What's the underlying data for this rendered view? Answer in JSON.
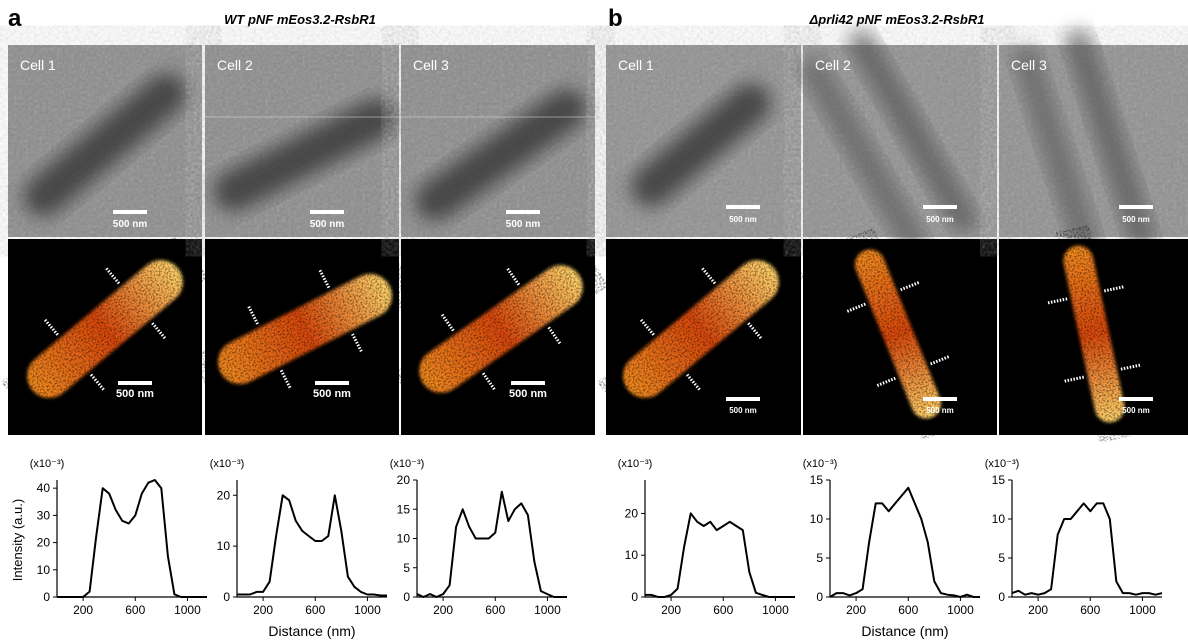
{
  "panels": [
    {
      "label": "a",
      "title": "WT pNF mEos3.2-RsbR1",
      "cells": [
        {
          "name": "Cell 1",
          "scalebar_em": "500 nm",
          "scalebar_sr": "500 nm"
        },
        {
          "name": "Cell 2",
          "scalebar_em": "500 nm",
          "scalebar_sr": "500 nm"
        },
        {
          "name": "Cell 3",
          "scalebar_em": "500 nm",
          "scalebar_sr": "500 nm"
        }
      ]
    },
    {
      "label": "b",
      "title": "Δprli42 pNF mEos3.2-RsbR1",
      "cells": [
        {
          "name": "Cell 1",
          "scalebar_em": "500 nm",
          "scalebar_sr": "500 nm"
        },
        {
          "name": "Cell 2",
          "scalebar_em": "500 nm",
          "scalebar_sr": "500 nm"
        },
        {
          "name": "Cell 3",
          "scalebar_em": "500 nm",
          "scalebar_sr": "500 nm"
        }
      ]
    }
  ],
  "chart_data": [
    {
      "type": "line",
      "y_unit": "(x10⁻³)",
      "y_label": "Intensity (a.u.)",
      "color": "#000000",
      "x": [
        0,
        50,
        100,
        150,
        200,
        250,
        300,
        350,
        400,
        450,
        500,
        550,
        600,
        650,
        700,
        750,
        800,
        850,
        900,
        950,
        1000,
        1050,
        1100,
        1150
      ],
      "values": [
        0,
        0,
        0,
        0,
        0,
        2,
        22,
        40,
        38,
        32,
        28,
        27,
        30,
        38,
        42,
        43,
        40,
        15,
        1,
        0,
        0,
        0,
        0,
        0
      ],
      "xlim": [
        0,
        1150
      ],
      "xticks": [
        200,
        600,
        1000
      ],
      "ylim": [
        0,
        43
      ],
      "yticks": [
        0,
        10,
        20,
        30,
        40
      ]
    },
    {
      "type": "line",
      "y_unit": "(x10⁻³)",
      "x_label": "Distance (nm)",
      "color": "#000000",
      "x": [
        0,
        50,
        100,
        150,
        200,
        250,
        300,
        350,
        400,
        450,
        500,
        550,
        600,
        650,
        700,
        750,
        800,
        850,
        900,
        950,
        1000,
        1050,
        1100,
        1150
      ],
      "values": [
        0.5,
        0.5,
        0.5,
        1,
        1,
        3,
        12,
        20,
        19,
        15,
        13,
        12,
        11,
        11,
        12,
        20,
        13,
        4,
        2,
        1,
        0.5,
        0.5,
        0.3,
        0.3
      ],
      "xlim": [
        0,
        1150
      ],
      "xticks": [
        200,
        600,
        1000
      ],
      "ylim": [
        0,
        23
      ],
      "yticks": [
        0,
        10,
        20
      ]
    },
    {
      "type": "line",
      "y_unit": "(x10⁻³)",
      "color": "#000000",
      "x": [
        0,
        50,
        100,
        150,
        200,
        250,
        300,
        350,
        400,
        450,
        500,
        550,
        600,
        650,
        700,
        750,
        800,
        850,
        900,
        950,
        1000,
        1050,
        1100,
        1150
      ],
      "values": [
        0.5,
        0,
        0.5,
        0,
        0.5,
        2,
        12,
        15,
        12,
        10,
        10,
        10,
        11,
        18,
        13,
        15,
        16,
        14,
        6,
        1,
        0.5,
        0,
        0,
        0
      ],
      "xlim": [
        0,
        1150
      ],
      "xticks": [
        200,
        600,
        1000
      ],
      "ylim": [
        0,
        20
      ],
      "yticks": [
        0,
        5,
        10,
        15,
        20
      ]
    },
    {
      "type": "line",
      "y_unit": "(x10⁻³)",
      "color": "#000000",
      "x": [
        0,
        50,
        100,
        150,
        200,
        250,
        300,
        350,
        400,
        450,
        500,
        550,
        600,
        650,
        700,
        750,
        800,
        850,
        900,
        950,
        1000,
        1050,
        1100,
        1150
      ],
      "values": [
        0.5,
        0.5,
        0,
        0,
        0.5,
        2,
        12,
        20,
        18,
        17,
        18,
        16,
        17,
        18,
        17,
        16,
        6,
        1,
        0.5,
        0,
        0,
        0,
        0,
        0
      ],
      "xlim": [
        0,
        1150
      ],
      "xticks": [
        200,
        600,
        1000
      ],
      "ylim": [
        0,
        28
      ],
      "yticks": [
        0,
        10,
        20
      ]
    },
    {
      "type": "line",
      "y_unit": "(x10⁻³)",
      "x_label": "Distance (nm)",
      "color": "#000000",
      "x": [
        0,
        50,
        100,
        150,
        200,
        250,
        300,
        350,
        400,
        450,
        500,
        550,
        600,
        650,
        700,
        750,
        800,
        850,
        900,
        950,
        1000,
        1050,
        1100,
        1150
      ],
      "values": [
        0,
        0.5,
        0.5,
        0.2,
        0.5,
        1,
        7,
        12,
        12,
        11,
        12,
        13,
        14,
        12,
        10,
        7,
        2,
        0.5,
        0.3,
        0.2,
        0,
        0.3,
        0,
        0
      ],
      "xlim": [
        0,
        1150
      ],
      "xticks": [
        200,
        600,
        1000
      ],
      "ylim": [
        0,
        15
      ],
      "yticks": [
        0,
        5,
        10,
        15
      ]
    },
    {
      "type": "line",
      "y_unit": "(x10⁻³)",
      "color": "#000000",
      "x": [
        0,
        50,
        100,
        150,
        200,
        250,
        300,
        350,
        400,
        450,
        500,
        550,
        600,
        650,
        700,
        750,
        800,
        850,
        900,
        950,
        1000,
        1050,
        1100,
        1150
      ],
      "values": [
        0.5,
        0.8,
        0.3,
        0.5,
        0.3,
        0.5,
        1,
        8,
        10,
        10,
        11,
        12,
        11,
        12,
        12,
        10,
        2,
        0.5,
        0.5,
        0.3,
        0.5,
        0.5,
        0.3,
        0.5
      ],
      "xlim": [
        0,
        1150
      ],
      "xticks": [
        200,
        600,
        1000
      ],
      "ylim": [
        0,
        15
      ],
      "yticks": [
        0,
        5,
        10,
        15
      ]
    }
  ]
}
